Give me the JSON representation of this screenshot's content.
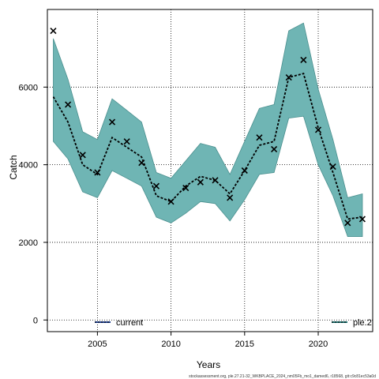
{
  "chart_data": {
    "type": "line",
    "title": "",
    "xlabel": "Years",
    "ylabel": "Catch",
    "xlim": [
      2001.6,
      2023.7
    ],
    "ylim": [
      -300,
      8000
    ],
    "xticks": [
      2005,
      2010,
      2015,
      2020
    ],
    "yticks": [
      0,
      2000,
      4000,
      6000
    ],
    "grid": true,
    "legend_entries": [
      "current",
      "ple.2"
    ],
    "x": [
      2002,
      2003,
      2004,
      2005,
      2006,
      2007,
      2008,
      2009,
      2010,
      2011,
      2012,
      2013,
      2014,
      2015,
      2016,
      2017,
      2018,
      2019,
      2020,
      2021,
      2022,
      2023
    ],
    "series": [
      {
        "name": "current",
        "kind": "fitted-line",
        "values": [
          5750,
          5100,
          4000,
          3750,
          4700,
          4450,
          4200,
          3200,
          3050,
          3450,
          3700,
          3600,
          3250,
          3850,
          4500,
          4600,
          6250,
          6350,
          4950,
          3800,
          2600,
          2650
        ]
      },
      {
        "name": "ple.2",
        "kind": "fitted-line",
        "values": [
          5750,
          5100,
          4000,
          3750,
          4700,
          4450,
          4200,
          3200,
          3050,
          3450,
          3700,
          3600,
          3250,
          3850,
          4500,
          4600,
          6250,
          6350,
          4950,
          3800,
          2600,
          2650
        ]
      },
      {
        "name": "",
        "kind": "band",
        "lower": [
          4600,
          4150,
          3300,
          3150,
          3850,
          3650,
          3450,
          2650,
          2500,
          2750,
          3050,
          3000,
          2550,
          3100,
          3750,
          3800,
          5200,
          5250,
          4000,
          3200,
          2150,
          2150
        ],
        "upper": [
          7250,
          6200,
          4850,
          4650,
          5700,
          5400,
          5100,
          3800,
          3650,
          4100,
          4550,
          4450,
          3750,
          4600,
          5450,
          5550,
          7450,
          7650,
          5950,
          4650,
          3150,
          3250
        ]
      },
      {
        "name": "",
        "kind": "observed",
        "values": [
          7450,
          5550,
          4250,
          3800,
          5100,
          4600,
          4050,
          3450,
          3050,
          3400,
          3550,
          3600,
          3150,
          3850,
          4700,
          4400,
          6250,
          6700,
          4900,
          3950,
          2500,
          2600
        ]
      }
    ],
    "colors": {
      "band_fill": "#6fb5b4",
      "band_stroke": "#4a8f8e",
      "line": "#000000",
      "legend_line_current": "#1f3f8f",
      "legend_line_ple2": "#1a6e6c"
    }
  },
  "footer": "stockassessment.org, ple.27.21-32_WKBPLACE_2024_nm05Fb_mo1_damed6, r18568, git:c9c81ec53a0d"
}
